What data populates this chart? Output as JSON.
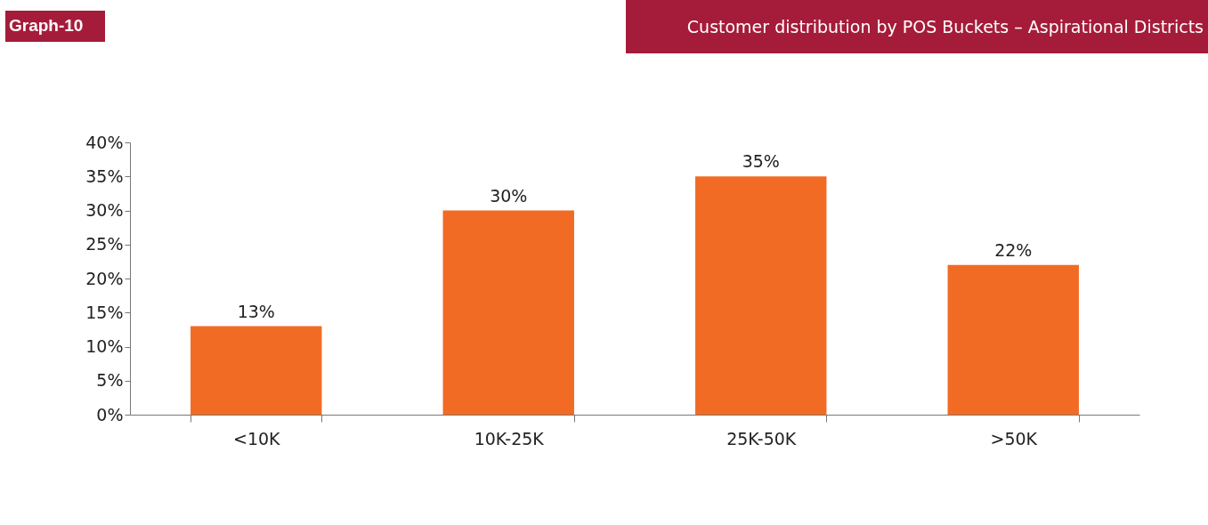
{
  "chart_data": {
    "type": "bar",
    "title": "Customer distribution by POS Buckets  – Aspirational Districts",
    "annotations": [
      "Graph-10"
    ],
    "categories": [
      "<10K",
      "10K-25K",
      "25K-50K",
      ">50K"
    ],
    "values": [
      13,
      30,
      35,
      22
    ],
    "color": "#f26b25",
    "ylim": [
      0,
      40
    ],
    "yticks": [
      {
        "value": 0,
        "label": "0%"
      },
      {
        "value": 5,
        "label": "5%"
      },
      {
        "value": 10,
        "label": "10%"
      },
      {
        "value": 15,
        "label": "15%"
      },
      {
        "value": 20,
        "label": "20%"
      },
      {
        "value": 25,
        "label": "25%"
      },
      {
        "value": 30,
        "label": "30%"
      },
      {
        "value": 35,
        "label": "35%"
      },
      {
        "value": 40,
        "label": "40%"
      }
    ],
    "value_labels": [
      "13%",
      "30%",
      "35%",
      "22%"
    ],
    "grid": false
  }
}
